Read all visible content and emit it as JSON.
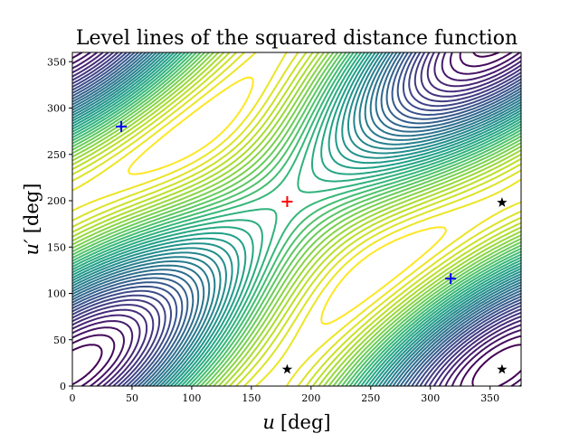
{
  "chart_data": {
    "type": "contour",
    "title": "Level lines of the squared distance function",
    "xlabel": "u [deg]",
    "ylabel": "u′ [deg]",
    "xlabel_parts": {
      "var": "u",
      "unit": "[deg]"
    },
    "ylabel_parts": {
      "var": "u′",
      "unit": "[deg]"
    },
    "xlim": [
      0,
      376
    ],
    "ylim": [
      0,
      360
    ],
    "xticks": [
      0,
      50,
      100,
      150,
      200,
      250,
      300,
      350
    ],
    "yticks": [
      0,
      50,
      100,
      150,
      200,
      250,
      300,
      350
    ],
    "grid": false,
    "colormap": "viridis",
    "colormap_stops": [
      "#440154",
      "#482878",
      "#3e4989",
      "#31688e",
      "#26828e",
      "#1f9e89",
      "#35b779",
      "#6ece58",
      "#b5de2b",
      "#fde725"
    ],
    "contour_level_count": 40,
    "markers": [
      {
        "x": 180,
        "y": 199,
        "marker": "plus",
        "color": "#ff0000",
        "role": "maximum"
      },
      {
        "x": 41,
        "y": 280,
        "marker": "plus",
        "color": "#0000ff",
        "role": "minimum"
      },
      {
        "x": 317,
        "y": 116,
        "marker": "plus",
        "color": "#0000ff",
        "role": "minimum"
      },
      {
        "x": 180,
        "y": 18,
        "marker": "star",
        "color": "#000000",
        "role": "saddle"
      },
      {
        "x": 360,
        "y": 18,
        "marker": "star",
        "color": "#000000",
        "role": "saddle"
      },
      {
        "x": 360,
        "y": 198,
        "marker": "star",
        "color": "#000000",
        "role": "saddle"
      }
    ]
  }
}
